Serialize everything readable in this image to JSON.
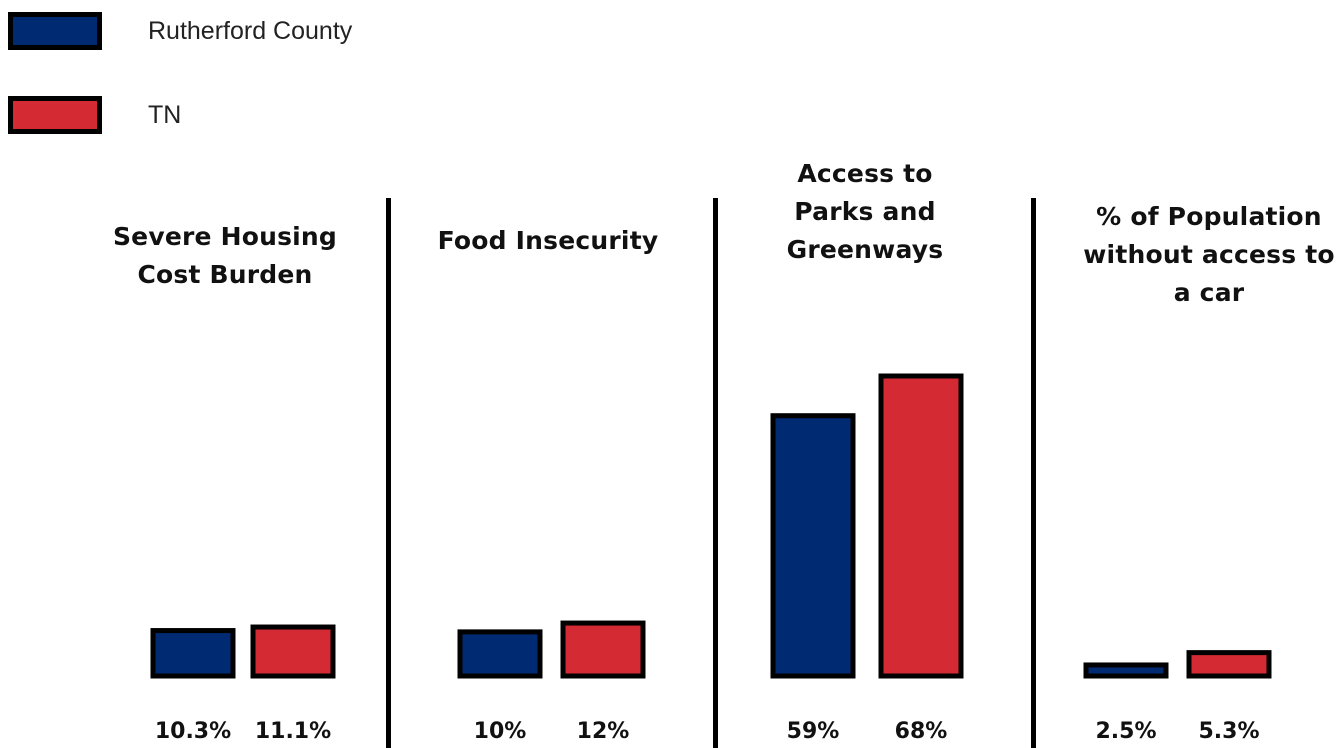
{
  "legend": [
    {
      "label": "Rutherford County",
      "color": "#002a72"
    },
    {
      "label": "TN",
      "color": "#d42a34"
    }
  ],
  "chart_data": {
    "type": "bar",
    "series": [
      {
        "name": "Rutherford County",
        "color": "#002a72"
      },
      {
        "name": "TN",
        "color": "#d42a34"
      }
    ],
    "panels": [
      {
        "title": "Severe Housing Cost Burden",
        "values": [
          10.3,
          11.1
        ],
        "labels": [
          "10.3%",
          "11.1%"
        ]
      },
      {
        "title": "Food Insecurity",
        "values": [
          10,
          12
        ],
        "labels": [
          "10%",
          "12%"
        ]
      },
      {
        "title": "Access to Parks and Greenways",
        "values": [
          59,
          68
        ],
        "labels": [
          "59%",
          "68%"
        ]
      },
      {
        "title": "% of Population without access to a car",
        "values": [
          2.5,
          5.3
        ],
        "labels": [
          "2.5%",
          "5.3%"
        ]
      }
    ],
    "xlabel": "",
    "ylabel": "",
    "grid": false,
    "legend_position": "top-left"
  }
}
